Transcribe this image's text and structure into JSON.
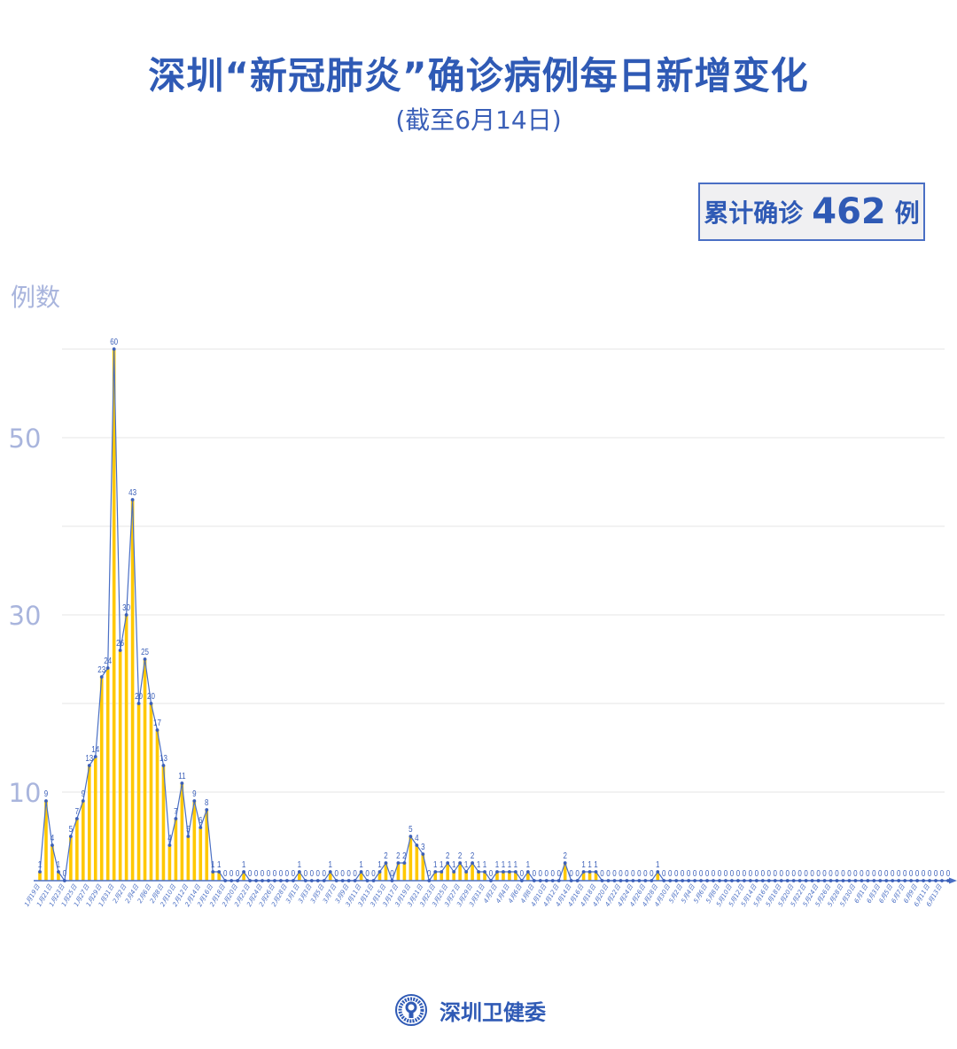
{
  "header": {
    "title": "深圳“新冠肺炎”确诊病例每日新增变化",
    "subtitle": "(截至6月14日)"
  },
  "summary": {
    "prefix": "累计确诊",
    "total": "462",
    "suffix": "例"
  },
  "footer": {
    "org": "深圳卫健委",
    "logo_icon": "health-commission-emblem"
  },
  "colors": {
    "title": "#2f5ab5",
    "bar": "#ffc800",
    "line": "#4a6fc4",
    "axis_label": "#a9b5dd",
    "grid": "#e6e6e6"
  },
  "chart_data": {
    "type": "bar",
    "overlay": "line",
    "title": "深圳“新冠肺炎”确诊病例每日新增变化",
    "ylabel": "例数",
    "xlabel": "",
    "ylim": [
      0,
      60
    ],
    "yticks_labeled": [
      10,
      30,
      50
    ],
    "grid_step": 10,
    "grid": true,
    "data_labels": true,
    "x": [
      "1月19日",
      "1月20日",
      "1月21日",
      "1月22日",
      "1月23日",
      "1月24日",
      "1月25日",
      "1月26日",
      "1月27日",
      "1月28日",
      "1月29日",
      "1月30日",
      "1月31日",
      "2月1日",
      "2月2日",
      "2月3日",
      "2月4日",
      "2月5日",
      "2月6日",
      "2月7日",
      "2月8日",
      "2月9日",
      "2月10日",
      "2月11日",
      "2月12日",
      "2月13日",
      "2月14日",
      "2月15日",
      "2月16日",
      "2月17日",
      "2月18日",
      "2月19日",
      "2月20日",
      "2月21日",
      "2月22日",
      "2月23日",
      "2月24日",
      "2月25日",
      "2月26日",
      "2月27日",
      "2月28日",
      "2月29日",
      "3月1日",
      "3月2日",
      "3月3日",
      "3月4日",
      "3月5日",
      "3月6日",
      "3月7日",
      "3月8日",
      "3月9日",
      "3月10日",
      "3月11日",
      "3月12日",
      "3月13日",
      "3月14日",
      "3月15日",
      "3月16日",
      "3月17日",
      "3月18日",
      "3月19日",
      "3月20日",
      "3月21日",
      "3月22日",
      "3月23日",
      "3月24日",
      "3月25日",
      "3月26日",
      "3月27日",
      "3月28日",
      "3月29日",
      "3月30日",
      "3月31日",
      "4月1日",
      "4月2日",
      "4月3日",
      "4月4日",
      "4月5日",
      "4月6日",
      "4月7日",
      "4月8日",
      "4月9日",
      "4月10日",
      "4月11日",
      "4月12日",
      "4月13日",
      "4月14日",
      "4月15日",
      "4月16日",
      "4月17日",
      "4月18日",
      "4月19日",
      "4月20日",
      "4月21日",
      "4月22日",
      "4月23日",
      "4月24日",
      "4月25日",
      "4月26日",
      "4月27日",
      "4月28日",
      "4月29日",
      "4月30日",
      "5月1日",
      "5月2日",
      "5月3日",
      "5月4日",
      "5月5日",
      "5月6日",
      "5月7日",
      "5月8日",
      "5月9日",
      "5月10日",
      "5月11日",
      "5月12日",
      "5月13日",
      "5月14日",
      "5月15日",
      "5月16日",
      "5月17日",
      "5月18日",
      "5月19日",
      "5月20日",
      "5月21日",
      "5月22日",
      "5月23日",
      "5月24日",
      "5月25日",
      "5月26日",
      "5月27日",
      "5月28日",
      "5月29日",
      "5月30日",
      "5月31日",
      "6月1日",
      "6月2日",
      "6月3日",
      "6月4日",
      "6月5日",
      "6月6日",
      "6月7日",
      "6月8日",
      "6月9日",
      "6月10日",
      "6月11日",
      "6月12日",
      "6月13日",
      "6月14日"
    ],
    "values": [
      1,
      9,
      4,
      1,
      0,
      5,
      7,
      9,
      13,
      14,
      23,
      24,
      60,
      26,
      30,
      43,
      20,
      25,
      20,
      17,
      13,
      4,
      7,
      11,
      5,
      9,
      6,
      8,
      1,
      1,
      0,
      0,
      0,
      1,
      0,
      0,
      0,
      0,
      0,
      0,
      0,
      0,
      1,
      0,
      0,
      0,
      0,
      1,
      0,
      0,
      0,
      0,
      1,
      0,
      0,
      1,
      2,
      0,
      2,
      2,
      5,
      4,
      3,
      0,
      1,
      1,
      2,
      1,
      2,
      1,
      2,
      1,
      1,
      0,
      1,
      1,
      1,
      1,
      0,
      1,
      0,
      0,
      0,
      0,
      0,
      2,
      0,
      0,
      1,
      1,
      1,
      0,
      0,
      0,
      0,
      0,
      0,
      0,
      0,
      0,
      1,
      0,
      0,
      0,
      0,
      0,
      0,
      0,
      0,
      0,
      0,
      0,
      0,
      0,
      0,
      0,
      0,
      0,
      0,
      0,
      0,
      0,
      0,
      0,
      0,
      0,
      0,
      0,
      0,
      0,
      0,
      0,
      0,
      0,
      0,
      0,
      0,
      0,
      0,
      0,
      0,
      0,
      0,
      0,
      0,
      0,
      0,
      0
    ]
  }
}
